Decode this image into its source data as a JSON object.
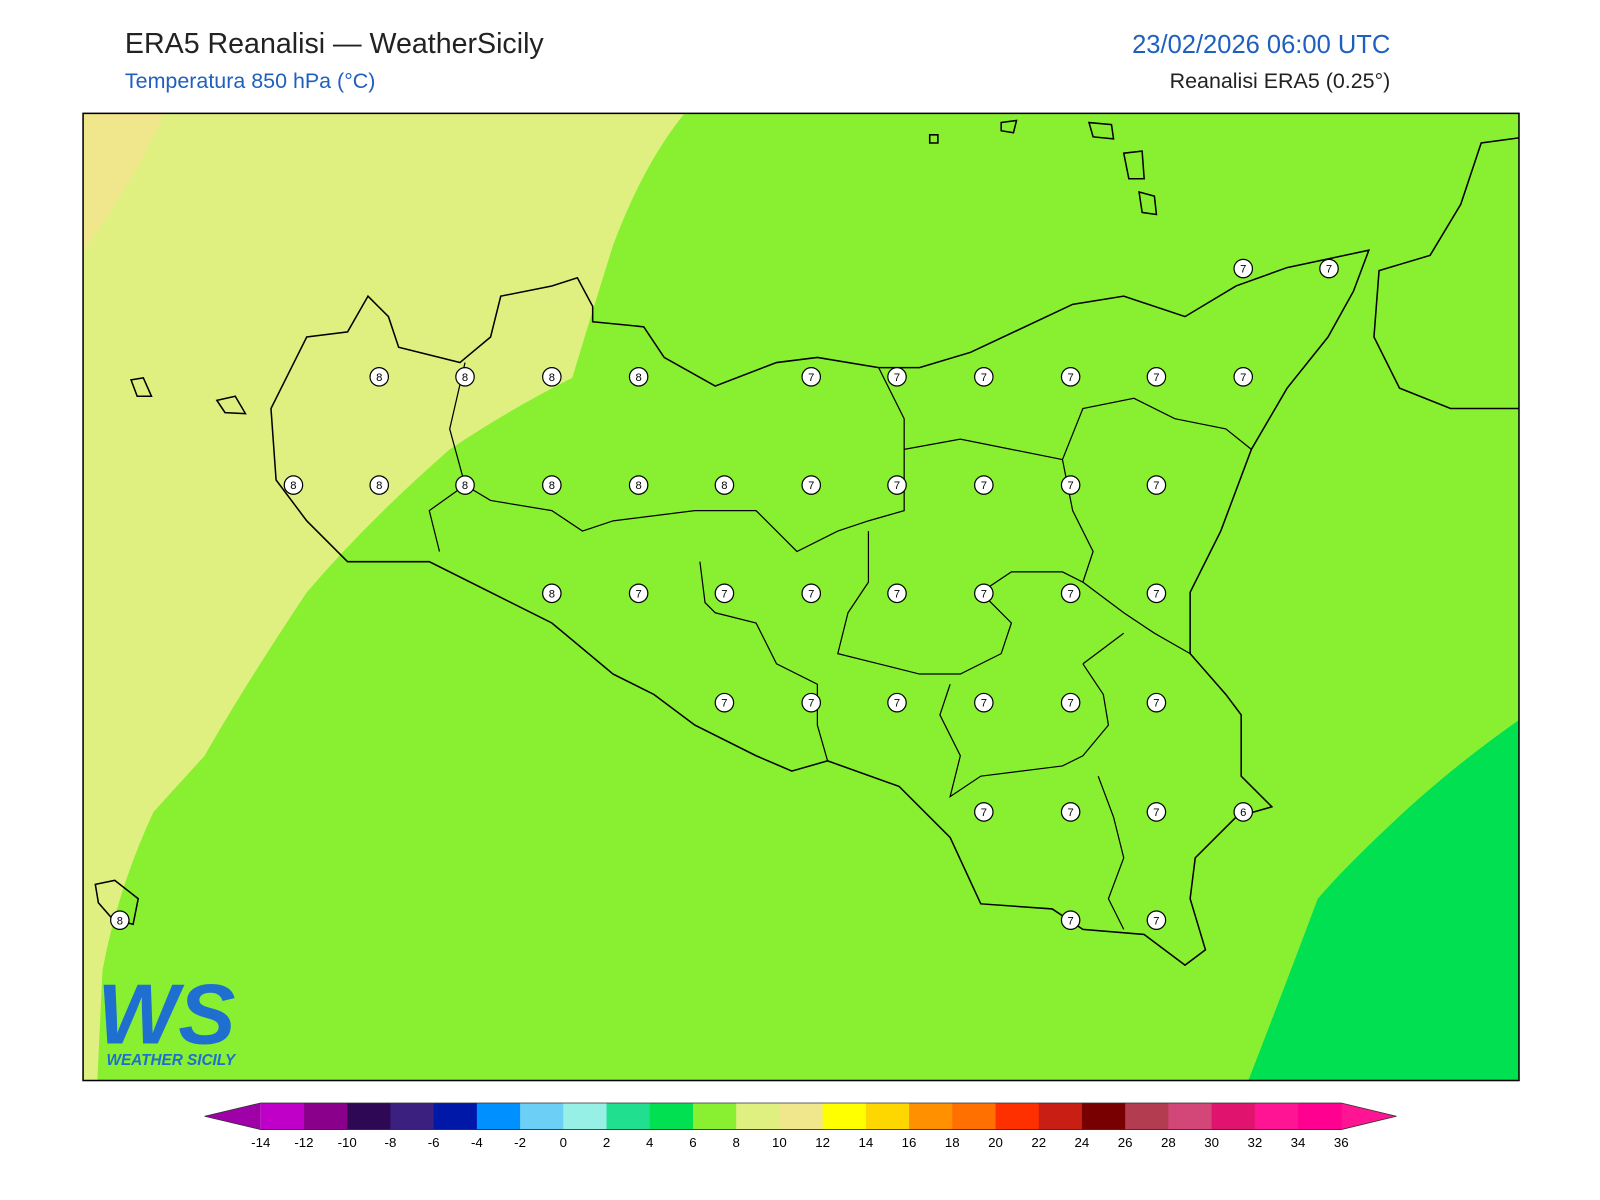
{
  "header": {
    "title": "ERA5 Reanalisi — WeatherSicily",
    "subtitle": "Temperatura 850 hPa (°C)",
    "datetime": "23/02/2026 06:00 UTC",
    "source": "Reanalisi ERA5 (0.25°)"
  },
  "stations": [
    7,
    7,
    8,
    8,
    8,
    8,
    7,
    7,
    7,
    7,
    7,
    7,
    8,
    8,
    8,
    8,
    8,
    8,
    7,
    7,
    7,
    7,
    7,
    8,
    7,
    7,
    7,
    7,
    7,
    7,
    7,
    7,
    7,
    7,
    7,
    7,
    7,
    7,
    7,
    7,
    6,
    8,
    7,
    7
  ],
  "colorbar": {
    "ticks": [
      -14,
      -12,
      -10,
      -8,
      -6,
      -4,
      -2,
      0,
      2,
      4,
      6,
      8,
      10,
      12,
      14,
      16,
      18,
      20,
      22,
      24,
      26,
      28,
      30,
      32,
      34,
      36
    ],
    "under_color": "#a000a8",
    "over_color": "#ff1493",
    "colors": [
      "#c000c8",
      "#8b008b",
      "#2e0854",
      "#3b2080",
      "#0018a8",
      "#0090ff",
      "#6ccff6",
      "#96f0e6",
      "#20e090",
      "#00e050",
      "#88f030",
      "#e0f080",
      "#f0e68c",
      "#ffff00",
      "#ffd700",
      "#ff9000",
      "#ff7000",
      "#ff3000",
      "#c81e14",
      "#780000",
      "#b43c50",
      "#d24678",
      "#e0146e",
      "#ff1493",
      "#ff0090"
    ]
  },
  "logo": {
    "mark": "WS",
    "name": "WEATHER SICILY"
  }
}
